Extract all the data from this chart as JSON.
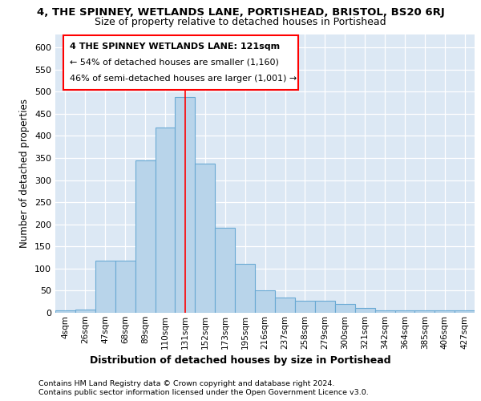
{
  "title_line1": "4, THE SPINNEY, WETLANDS LANE, PORTISHEAD, BRISTOL, BS20 6RJ",
  "title_line2": "Size of property relative to detached houses in Portishead",
  "xlabel": "Distribution of detached houses by size in Portishead",
  "ylabel": "Number of detached properties",
  "bar_labels": [
    "4sqm",
    "26sqm",
    "47sqm",
    "68sqm",
    "89sqm",
    "110sqm",
    "131sqm",
    "152sqm",
    "173sqm",
    "195sqm",
    "216sqm",
    "237sqm",
    "258sqm",
    "279sqm",
    "300sqm",
    "321sqm",
    "342sqm",
    "364sqm",
    "385sqm",
    "406sqm",
    "427sqm"
  ],
  "bar_heights": [
    5,
    8,
    117,
    117,
    345,
    418,
    487,
    337,
    193,
    110,
    50,
    35,
    27,
    27,
    20,
    10,
    5,
    5,
    5,
    5,
    5
  ],
  "bar_color": "#b8d4ea",
  "bar_edge_color": "#6aaad4",
  "annotation_line1": "4 THE SPINNEY WETLANDS LANE: 121sqm",
  "annotation_line2": "← 54% of detached houses are smaller (1,160)",
  "annotation_line3": "46% of semi-detached houses are larger (1,001) →",
  "vline_x": 6.0,
  "vline_color": "red",
  "ylim": [
    0,
    630
  ],
  "yticks": [
    0,
    50,
    100,
    150,
    200,
    250,
    300,
    350,
    400,
    450,
    500,
    550,
    600
  ],
  "footer_line1": "Contains HM Land Registry data © Crown copyright and database right 2024.",
  "footer_line2": "Contains public sector information licensed under the Open Government Licence v3.0.",
  "fig_bg_color": "#ffffff",
  "plot_bg_color": "#dce8f4"
}
